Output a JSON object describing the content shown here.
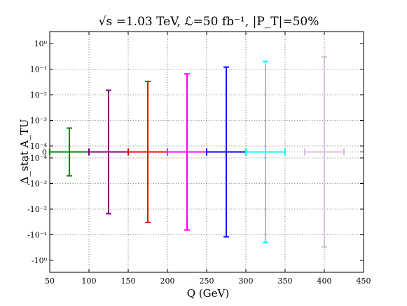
{
  "chart_data": {
    "type": "errorbar",
    "title": "√s =1.03 TeV, ℒ=50 fb⁻¹, |P_T|=50%",
    "xlabel": "Q (GeV)",
    "ylabel": "Δ_stat A_TU",
    "xlim": [
      50,
      450
    ],
    "x_ticks": [
      50,
      100,
      150,
      200,
      250,
      300,
      350,
      400,
      450
    ],
    "y_scale": "symlog",
    "y_ticks": [
      "10⁰",
      "10⁻¹",
      "10⁻²",
      "10⁻³",
      "10⁻⁴",
      "0",
      "-10⁻⁴",
      "-10⁻³",
      "-10⁻²",
      "-10⁻¹",
      "-10⁰"
    ],
    "grid": true,
    "series": [
      {
        "color": "#008000",
        "x": 75,
        "xerr": 25,
        "y": 0,
        "yerr": 0.0005
      },
      {
        "color": "#800080",
        "x": 125,
        "xerr": 25,
        "y": 0,
        "yerr": 0.015
      },
      {
        "color": "#ff0000",
        "x": 175,
        "xerr": 25,
        "y": 0,
        "yerr": 0.033
      },
      {
        "color": "#ff00ff",
        "x": 225,
        "xerr": 25,
        "y": 0,
        "yerr": 0.065
      },
      {
        "color": "#0000ff",
        "x": 275,
        "xerr": 25,
        "y": 0,
        "yerr": 0.12
      },
      {
        "color": "#00ffff",
        "x": 325,
        "xerr": 25,
        "y": 0,
        "yerr": 0.2
      },
      {
        "color": "#d8bfd8",
        "x": 400,
        "xerr": 25,
        "y": 0,
        "yerr": 0.3
      }
    ]
  }
}
